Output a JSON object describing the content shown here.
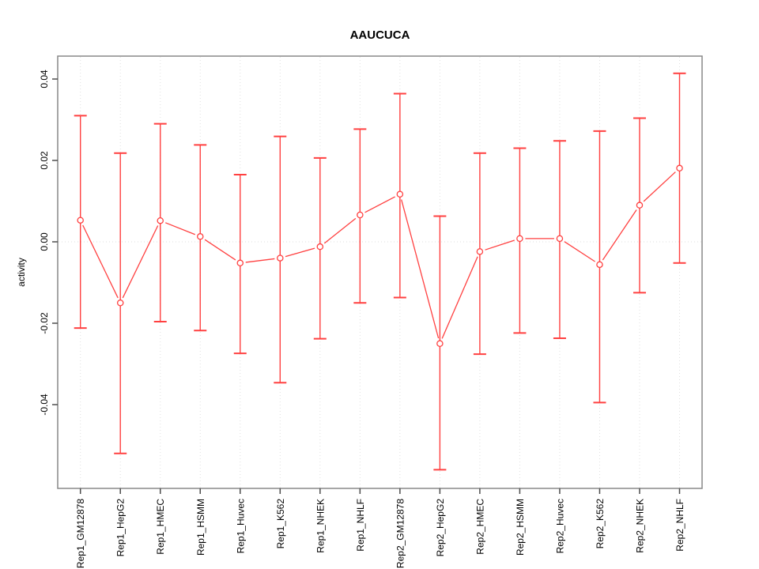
{
  "figure": {
    "background": "#ffffff"
  },
  "chart_data": {
    "type": "line",
    "title": "AAUCUCA",
    "xlabel": "",
    "ylabel": "activity",
    "categories": [
      "Rep1_GM12878",
      "Rep1_HepG2",
      "Rep1_HMEC",
      "Rep1_HSMM",
      "Rep1_Huvec",
      "Rep1_K562",
      "Rep1_NHEK",
      "Rep1_NHLF",
      "Rep2_GM12878",
      "Rep2_HepG2",
      "Rep2_HMEC",
      "Rep2_HSMM",
      "Rep2_Huvec",
      "Rep2_K562",
      "Rep2_NHEK",
      "Rep2_NHLF"
    ],
    "series": [
      {
        "name": "activity",
        "marker": "open-circle",
        "values": [
          0.0053,
          -0.015,
          0.0052,
          0.0013,
          -0.0052,
          -0.004,
          -0.0012,
          0.0066,
          0.0117,
          -0.025,
          -0.0024,
          0.0008,
          0.0008,
          -0.0056,
          0.009,
          0.0181
        ],
        "upper": [
          0.031,
          0.0218,
          0.029,
          0.0238,
          0.0165,
          0.0259,
          0.0206,
          0.0277,
          0.0364,
          0.0063,
          0.0218,
          0.023,
          0.0248,
          0.0272,
          0.0304,
          0.0414
        ],
        "lower": [
          -0.0212,
          -0.052,
          -0.0196,
          -0.0218,
          -0.0274,
          -0.0346,
          -0.0238,
          -0.015,
          -0.0137,
          -0.056,
          -0.0276,
          -0.0224,
          -0.0237,
          -0.0395,
          -0.0125,
          -0.0052
        ]
      }
    ],
    "yticks": [
      -0.04,
      -0.02,
      0.0,
      0.02,
      0.04
    ],
    "ytick_labels": [
      "-0.04",
      "-0.02",
      "0.00",
      "0.02",
      "0.04"
    ],
    "ylim": [
      -0.0608,
      0.0455
    ],
    "grid": "vertical dotted gridline at each category; horizontal dotted line at y=0",
    "legend": "none",
    "colors": {
      "series": "#ff4040",
      "grid": "#e0e0e0",
      "zero_line": "#dcdcdc",
      "axis_box": "#888888",
      "tick": "#4d4d4d",
      "text": "#000000"
    }
  }
}
